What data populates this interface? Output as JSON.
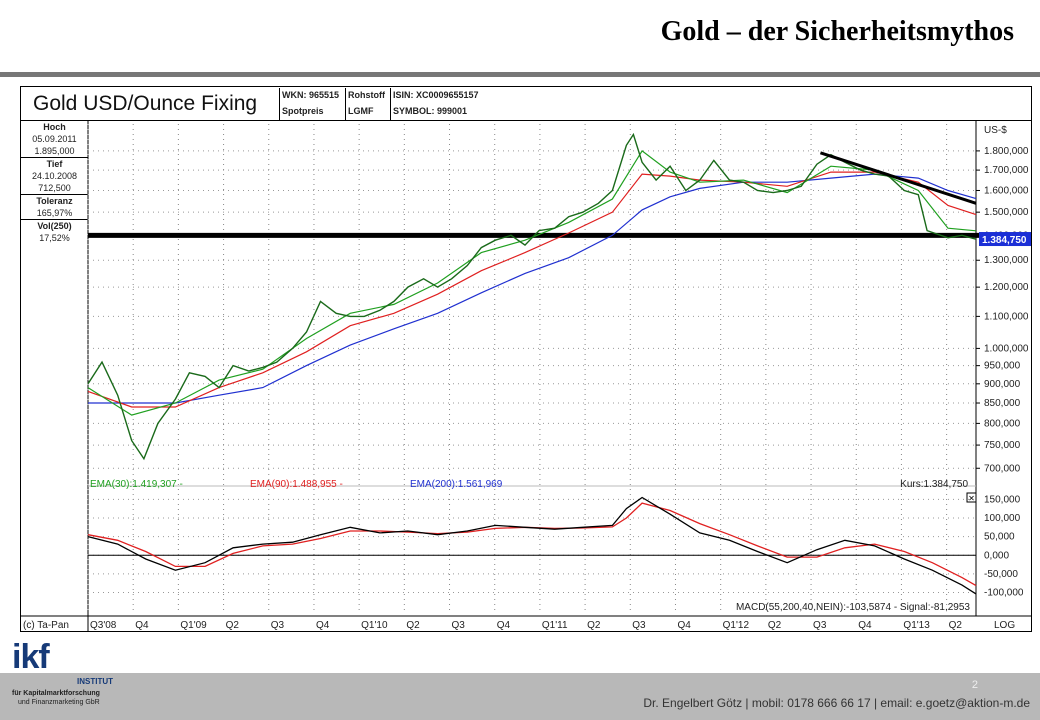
{
  "slide": {
    "title": "Gold – der Sicherheitsmythos",
    "footer": "Dr. Engelbert Götz  |  mobil: 0178 666 66 17  |  email: e.goetz@aktion-m.de",
    "page_number": "2",
    "logo": {
      "text": "ikf",
      "institute": "INSTITUT",
      "line1": "für Kapitalmarktforschung",
      "line2": "und Finanzmarketing GbR"
    }
  },
  "chart_header": {
    "name": "Gold USD/Ounce Fixing",
    "wkn": "WKN: 965515",
    "type": "Rohstoff",
    "isin": "ISIN: XC0009655157",
    "subtype": "Spotpreis",
    "exchange": "LGMF",
    "symbol": "SYMBOL: 999001"
  },
  "stats": [
    {
      "label": "Hoch",
      "values": [
        "05.09.2011",
        "1.895,000"
      ]
    },
    {
      "label": "Tief",
      "values": [
        "24.10.2008",
        "712,500"
      ]
    },
    {
      "label": "Toleranz",
      "values": [
        "165,97%"
      ]
    },
    {
      "label": "Vol(250)",
      "values": [
        "17,52%"
      ]
    }
  ],
  "chart_data": [
    {
      "type": "line",
      "title": "Gold USD/Ounce Fixing",
      "scale": "log",
      "unit": "US-$",
      "ylim": [
        680,
        1950
      ],
      "y_ticks": [
        700,
        750,
        800,
        850,
        900,
        950,
        1000,
        1100,
        1200,
        1300,
        1400,
        1500,
        1600,
        1700,
        1800
      ],
      "y_tick_labels": [
        "700,000",
        "750,000",
        "800,000",
        "850,000",
        "900,000",
        "950,000",
        "1.000,000",
        "1.100,000",
        "1.200,000",
        "1.300,000",
        "1.400,000",
        "1.500,000",
        "1.600,000",
        "1.700,000",
        "1.800,000"
      ],
      "x_labels": [
        "Q3'08",
        "Q4",
        "Q1'09",
        "Q2",
        "Q3",
        "Q4",
        "Q1'10",
        "Q2",
        "Q3",
        "Q4",
        "Q1'11",
        "Q2",
        "Q3",
        "Q4",
        "Q1'12",
        "Q2",
        "Q3",
        "Q4",
        "Q1'13",
        "Q2"
      ],
      "x_range": [
        2008.5,
        2013.58
      ],
      "legend": [
        "EMA(30):1.419,307",
        "EMA(90):1.488,955",
        "EMA(200):1.561,969"
      ],
      "last_price_label": "Kurs:1.384,750",
      "last_price_box": "1.384,750",
      "last_price": 1384.75,
      "grid": true,
      "horizontal_level": 1400,
      "trendline": [
        {
          "x": 2012.69,
          "y": 1790
        },
        {
          "x": 2013.58,
          "y": 1540
        }
      ],
      "series": [
        {
          "name": "Kurs",
          "color": "#1a6a1a",
          "x": [
            2008.5,
            2008.58,
            2008.67,
            2008.75,
            2008.82,
            2008.9,
            2009.0,
            2009.08,
            2009.17,
            2009.25,
            2009.33,
            2009.42,
            2009.5,
            2009.58,
            2009.67,
            2009.75,
            2009.83,
            2009.92,
            2010.0,
            2010.08,
            2010.17,
            2010.25,
            2010.33,
            2010.42,
            2010.5,
            2010.58,
            2010.67,
            2010.75,
            2010.83,
            2010.92,
            2011.0,
            2011.08,
            2011.17,
            2011.25,
            2011.33,
            2011.42,
            2011.5,
            2011.58,
            2011.62,
            2011.67,
            2011.75,
            2011.83,
            2011.92,
            2012.0,
            2012.08,
            2012.17,
            2012.25,
            2012.33,
            2012.42,
            2012.5,
            2012.58,
            2012.67,
            2012.75,
            2012.83,
            2012.92,
            2013.0,
            2013.08,
            2013.17,
            2013.25,
            2013.3,
            2013.42,
            2013.5,
            2013.58
          ],
          "values": [
            900,
            960,
            870,
            760,
            720,
            800,
            860,
            930,
            920,
            890,
            950,
            935,
            945,
            960,
            1000,
            1050,
            1150,
            1110,
            1100,
            1100,
            1120,
            1150,
            1200,
            1230,
            1200,
            1230,
            1280,
            1350,
            1380,
            1400,
            1360,
            1420,
            1430,
            1480,
            1500,
            1540,
            1600,
            1830,
            1890,
            1740,
            1650,
            1720,
            1600,
            1650,
            1750,
            1650,
            1640,
            1600,
            1590,
            1600,
            1620,
            1730,
            1780,
            1740,
            1700,
            1680,
            1670,
            1600,
            1580,
            1420,
            1390,
            1400,
            1384
          ]
        },
        {
          "name": "EMA(30)",
          "color": "#20a020",
          "x": [
            2008.5,
            2008.75,
            2009.0,
            2009.25,
            2009.5,
            2009.75,
            2010.0,
            2010.25,
            2010.5,
            2010.75,
            2011.0,
            2011.25,
            2011.5,
            2011.67,
            2011.83,
            2012.0,
            2012.25,
            2012.5,
            2012.75,
            2013.0,
            2013.25,
            2013.42,
            2013.58
          ],
          "values": [
            890,
            820,
            850,
            910,
            940,
            1030,
            1110,
            1140,
            1215,
            1330,
            1380,
            1455,
            1560,
            1800,
            1690,
            1640,
            1650,
            1590,
            1720,
            1700,
            1600,
            1430,
            1419
          ]
        },
        {
          "name": "EMA(90)",
          "color": "#e02020",
          "x": [
            2008.5,
            2008.75,
            2009.0,
            2009.25,
            2009.5,
            2009.75,
            2010.0,
            2010.25,
            2010.5,
            2010.75,
            2011.0,
            2011.25,
            2011.5,
            2011.67,
            2011.83,
            2012.0,
            2012.25,
            2012.5,
            2012.75,
            2013.0,
            2013.25,
            2013.42,
            2013.58
          ],
          "values": [
            880,
            840,
            840,
            890,
            930,
            990,
            1070,
            1110,
            1175,
            1260,
            1330,
            1410,
            1500,
            1680,
            1670,
            1650,
            1640,
            1620,
            1690,
            1690,
            1640,
            1530,
            1489
          ]
        },
        {
          "name": "EMA(200)",
          "color": "#2030d0",
          "x": [
            2008.5,
            2008.75,
            2009.0,
            2009.25,
            2009.5,
            2009.75,
            2010.0,
            2010.25,
            2010.5,
            2010.75,
            2011.0,
            2011.25,
            2011.5,
            2011.67,
            2011.83,
            2012.0,
            2012.25,
            2012.5,
            2012.75,
            2013.0,
            2013.25,
            2013.42,
            2013.58
          ],
          "values": [
            850,
            850,
            850,
            870,
            890,
            950,
            1010,
            1060,
            1110,
            1180,
            1250,
            1310,
            1400,
            1510,
            1570,
            1610,
            1640,
            1640,
            1660,
            1680,
            1660,
            1600,
            1562
          ]
        }
      ]
    },
    {
      "type": "line",
      "title": "MACD(55,200,40,NEIN)",
      "legend": "MACD(55,200,40,NEIN):-103,5874 - Signal:-81,2953",
      "ylim": [
        -120,
        175
      ],
      "y_ticks": [
        -100,
        -50,
        0,
        50,
        100,
        150
      ],
      "y_tick_labels": [
        "-100,000",
        "-50,000",
        "0,000",
        "50,000",
        "100,000",
        "150,000"
      ],
      "zero_line": true,
      "series": [
        {
          "name": "MACD",
          "color": "#000000",
          "x": [
            2008.5,
            2008.67,
            2008.83,
            2009.0,
            2009.17,
            2009.33,
            2009.5,
            2009.67,
            2009.83,
            2010.0,
            2010.17,
            2010.33,
            2010.5,
            2010.67,
            2010.83,
            2011.0,
            2011.17,
            2011.33,
            2011.5,
            2011.58,
            2011.67,
            2011.83,
            2012.0,
            2012.17,
            2012.33,
            2012.5,
            2012.67,
            2012.83,
            2013.0,
            2013.17,
            2013.33,
            2013.5,
            2013.58
          ],
          "values": [
            50,
            30,
            -10,
            -40,
            -20,
            20,
            30,
            35,
            55,
            75,
            60,
            65,
            55,
            65,
            80,
            75,
            70,
            75,
            80,
            125,
            155,
            110,
            60,
            40,
            10,
            -20,
            15,
            40,
            25,
            -10,
            -40,
            -80,
            -103.59
          ]
        },
        {
          "name": "Signal",
          "color": "#e02020",
          "x": [
            2008.5,
            2008.67,
            2008.83,
            2009.0,
            2009.17,
            2009.33,
            2009.5,
            2009.67,
            2009.83,
            2010.0,
            2010.17,
            2010.33,
            2010.5,
            2010.67,
            2010.83,
            2011.0,
            2011.17,
            2011.33,
            2011.5,
            2011.58,
            2011.67,
            2011.83,
            2012.0,
            2012.17,
            2012.33,
            2012.5,
            2012.67,
            2012.83,
            2013.0,
            2013.17,
            2013.33,
            2013.5,
            2013.58
          ],
          "values": [
            55,
            40,
            10,
            -30,
            -30,
            5,
            25,
            30,
            45,
            65,
            65,
            62,
            58,
            62,
            72,
            75,
            72,
            73,
            76,
            100,
            140,
            120,
            85,
            55,
            25,
            -5,
            -5,
            20,
            30,
            10,
            -20,
            -60,
            -81.3
          ]
        }
      ]
    }
  ],
  "x_axis_corner": "(c) Ta-Pan",
  "log_corner": "LOG",
  "close_box": "✕"
}
